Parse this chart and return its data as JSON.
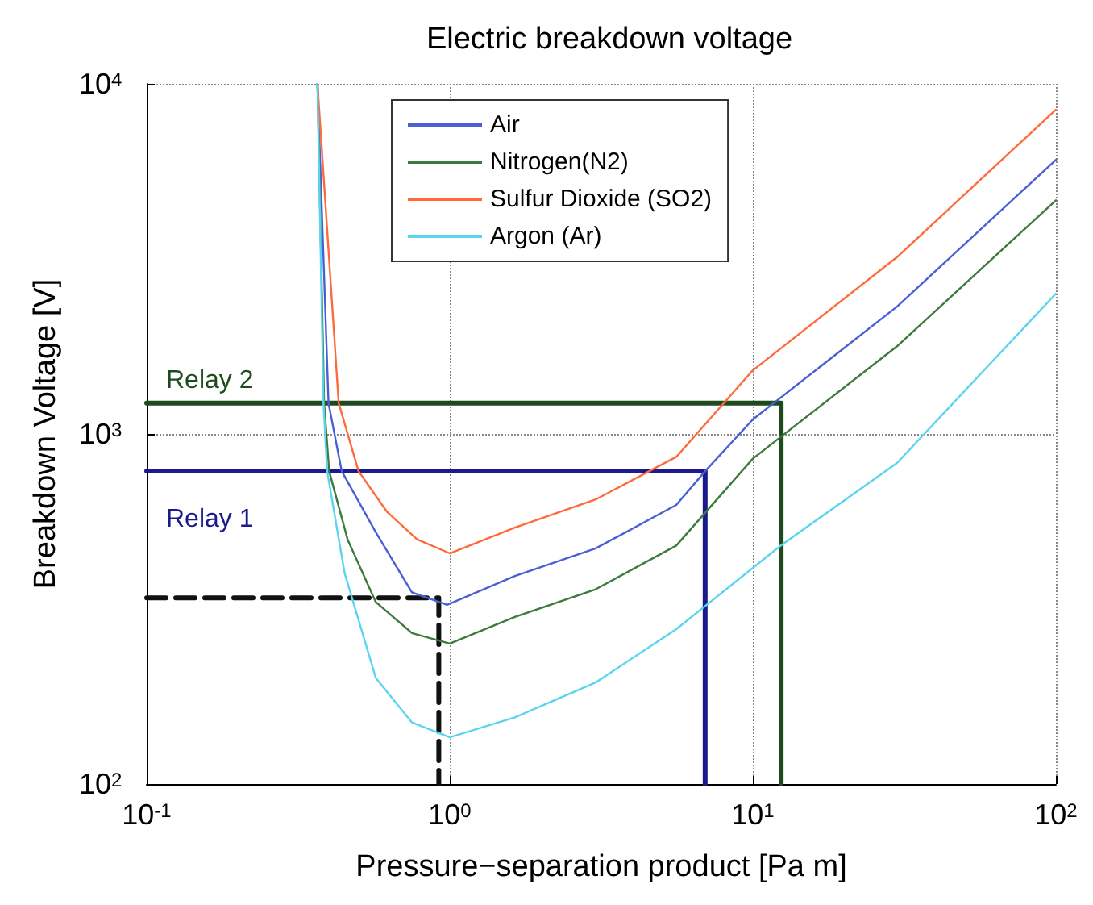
{
  "chart_data": {
    "type": "line",
    "title": "Electric breakdown voltage",
    "xlabel": "Pressure−separation product [Pa m]",
    "ylabel": "Breakdown Voltage [V]",
    "log": "xy",
    "xlim": [
      0.1,
      100
    ],
    "ylim": [
      100,
      10000
    ],
    "xticks": [
      {
        "value": 0.1,
        "label": "10$^{-1}$"
      },
      {
        "value": 1,
        "label": "10$^{0}$"
      },
      {
        "value": 10,
        "label": "10$^{1}$"
      },
      {
        "value": 100,
        "label": "10$^{2}$"
      }
    ],
    "yticks": [
      {
        "value": 100,
        "label": "10$^{2}$"
      },
      {
        "value": 1000,
        "label": "10$^{3}$"
      },
      {
        "value": 10000,
        "label": "10$^{4}$"
      }
    ],
    "grid": true,
    "legend": "top",
    "line_style": "solid",
    "series": [
      {
        "name": "Air",
        "color": "#4a5fd6",
        "x": [
          0.366,
          0.398,
          0.44,
          0.57,
          0.75,
          0.98,
          1.64,
          3.03,
          5.59,
          6.96,
          10,
          29.9,
          100
        ],
        "values": [
          10000,
          1225,
          783,
          524,
          353,
          325,
          393,
          471,
          627,
          783,
          1100,
          2311,
          6070
        ]
      },
      {
        "name": "Nitrogen(N2)",
        "color": "#3d7a3d",
        "x": [
          0.366,
          0.385,
          0.4,
          0.46,
          0.57,
          0.75,
          1.0,
          1.64,
          3.03,
          5.59,
          10,
          29.9,
          100
        ],
        "values": [
          10000,
          1225,
          783,
          500,
          331,
          270,
          252,
          300,
          360,
          480,
          850,
          1780,
          4650
        ]
      },
      {
        "name": "Sulfur Dioxide (SO2)",
        "color": "#ff6a3a",
        "x": [
          0.366,
          0.43,
          0.5,
          0.62,
          0.78,
          1.0,
          1.64,
          3.03,
          5.59,
          10,
          29.9,
          100
        ],
        "values": [
          10000,
          1225,
          783,
          600,
          500,
          456,
          540,
          650,
          860,
          1520,
          3200,
          8440
        ]
      },
      {
        "name": "Argon (Ar)",
        "color": "#5bd4f0",
        "x": [
          0.366,
          0.383,
          0.394,
          0.45,
          0.57,
          0.75,
          1.0,
          1.64,
          3.03,
          5.59,
          12.4,
          29.9,
          100
        ],
        "values": [
          10000,
          1225,
          783,
          400,
          201,
          150,
          136,
          155,
          195,
          277,
          481,
          826,
          2517
        ]
      },
      {
        "color": "#1f4a1f",
        "x": [
          0.1,
          12.4,
          12.4
        ],
        "values": [
          1225,
          1225,
          100
        ]
      },
      {
        "color": "#1a1a8c",
        "x": [
          0.1,
          6.96,
          6.96
        ],
        "values": [
          783,
          783,
          100
        ]
      },
      {
        "color": "#111111",
        "x": [
          0.1,
          0.92,
          0.92
        ],
        "values": [
          340,
          340,
          100
        ],
        "line_style": "dashed"
      }
    ],
    "annotations": [
      "Relay 2",
      "Relay 1"
    ]
  }
}
